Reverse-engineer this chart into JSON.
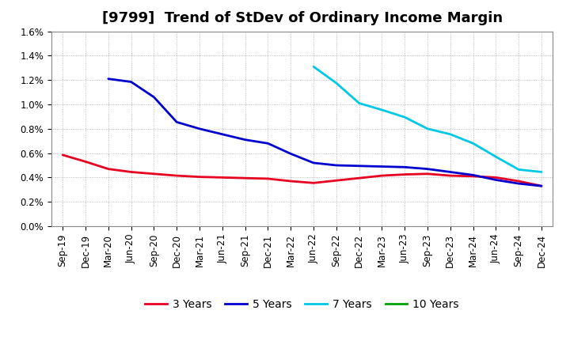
{
  "title": "[9799]  Trend of StDev of Ordinary Income Margin",
  "x_labels": [
    "Sep-19",
    "Dec-19",
    "Mar-20",
    "Jun-20",
    "Sep-20",
    "Dec-20",
    "Mar-21",
    "Jun-21",
    "Sep-21",
    "Dec-21",
    "Mar-22",
    "Jun-22",
    "Sep-22",
    "Dec-22",
    "Mar-23",
    "Jun-23",
    "Sep-23",
    "Dec-23",
    "Mar-24",
    "Jun-24",
    "Sep-24",
    "Dec-24"
  ],
  "ylim": [
    0.0,
    0.016
  ],
  "yticks": [
    0.0,
    0.002,
    0.004,
    0.006,
    0.008,
    0.01,
    0.012,
    0.014,
    0.016
  ],
  "ytick_labels": [
    "0.0%",
    "0.2%",
    "0.4%",
    "0.6%",
    "0.8%",
    "1.0%",
    "1.2%",
    "1.4%",
    "1.6%"
  ],
  "series": {
    "3 Years": {
      "color": "#e80020",
      "linewidth": 2.0,
      "values": [
        0.00585,
        0.0053,
        0.0047,
        0.00445,
        0.0043,
        0.00415,
        0.00405,
        0.004,
        0.00395,
        0.0039,
        0.0037,
        0.00355,
        0.00375,
        0.00395,
        0.00415,
        0.00425,
        0.0043,
        0.00415,
        0.0041,
        0.004,
        0.0037,
        0.0033
      ]
    },
    "5 Years": {
      "color": "#0000d0",
      "linewidth": 2.0,
      "values": [
        null,
        null,
        0.0121,
        0.01185,
        0.0106,
        0.00855,
        0.008,
        0.00755,
        0.0071,
        0.0068,
        0.00595,
        0.0052,
        0.005,
        0.00495,
        0.0049,
        0.00485,
        0.0047,
        0.00445,
        0.0042,
        0.0038,
        0.0035,
        0.0033
      ]
    },
    "7 Years": {
      "color": "#00c8e8",
      "linewidth": 2.0,
      "values": [
        null,
        null,
        null,
        null,
        null,
        null,
        null,
        null,
        null,
        null,
        null,
        0.0131,
        0.01175,
        0.0101,
        0.00955,
        0.00895,
        0.008,
        0.00755,
        0.0068,
        0.0057,
        0.00465,
        0.00445
      ]
    },
    "10 Years": {
      "color": "#00a000",
      "linewidth": 2.0,
      "values": [
        null,
        null,
        null,
        null,
        null,
        null,
        null,
        null,
        null,
        null,
        null,
        null,
        null,
        null,
        null,
        null,
        null,
        null,
        null,
        null,
        null,
        null
      ]
    }
  },
  "legend_entries": [
    "3 Years",
    "5 Years",
    "7 Years",
    "10 Years"
  ],
  "legend_colors": [
    "#e80020",
    "#0000d0",
    "#00c8e8",
    "#00a000"
  ],
  "background_color": "#ffffff",
  "plot_bg_color": "#ffffff",
  "grid_color": "#888888",
  "title_fontsize": 13,
  "tick_fontsize": 8.5,
  "legend_fontsize": 10
}
